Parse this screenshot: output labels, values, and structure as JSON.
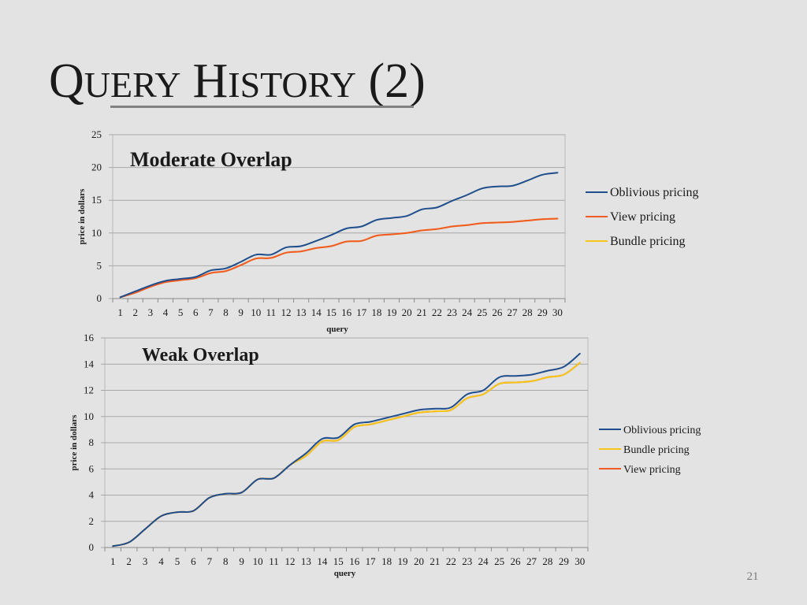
{
  "slide": {
    "title_q": "Q",
    "title_uery": "UERY",
    "title_h": "H",
    "title_istory": "ISTORY",
    "title_num": " (2)",
    "page_number": "21"
  },
  "chart_data": [
    {
      "type": "line",
      "title": "Moderate Overlap",
      "xlabel": "query",
      "ylabel": "price in dollars",
      "ylim": [
        0,
        25
      ],
      "yticks": [
        0,
        5,
        10,
        15,
        20,
        25
      ],
      "grid": true,
      "legend_position": "right",
      "x": [
        1,
        2,
        3,
        4,
        5,
        6,
        7,
        8,
        9,
        10,
        11,
        12,
        13,
        14,
        15,
        16,
        17,
        18,
        19,
        20,
        21,
        22,
        23,
        24,
        25,
        26,
        27,
        28,
        29,
        30
      ],
      "series": [
        {
          "name": "Oblivious pricing",
          "color": "#1f4e8c",
          "values": [
            0.2,
            1.1,
            2.0,
            2.7,
            3.0,
            3.3,
            4.3,
            4.6,
            5.6,
            6.7,
            6.7,
            7.8,
            8.0,
            8.8,
            9.7,
            10.7,
            11.0,
            12.0,
            12.3,
            12.6,
            13.6,
            13.9,
            14.9,
            15.8,
            16.8,
            17.1,
            17.2,
            18.0,
            18.9,
            19.2
          ]
        },
        {
          "name": "View pricing",
          "color": "#f05a24",
          "values": [
            0.2,
            0.9,
            1.8,
            2.5,
            2.8,
            3.1,
            3.9,
            4.2,
            5.1,
            6.1,
            6.2,
            7.0,
            7.2,
            7.7,
            8.0,
            8.7,
            8.8,
            9.6,
            9.8,
            10.0,
            10.4,
            10.6,
            11.0,
            11.2,
            11.5,
            11.6,
            11.7,
            11.9,
            12.1,
            12.2
          ]
        },
        {
          "name": "Bundle pricing",
          "color": "#f5c518",
          "values": [
            0.2,
            0.9,
            1.8,
            2.5,
            2.8,
            3.1,
            3.9,
            4.2,
            5.1,
            6.1,
            6.2,
            7.0,
            7.2,
            7.7,
            8.0,
            8.7,
            8.8,
            9.6,
            9.8,
            10.0,
            10.4,
            10.6,
            11.0,
            11.2,
            11.5,
            11.6,
            11.7,
            11.9,
            12.1,
            12.2
          ]
        }
      ]
    },
    {
      "type": "line",
      "title": "Weak Overlap",
      "xlabel": "query",
      "ylabel": "price in dollars",
      "ylim": [
        0,
        16
      ],
      "yticks": [
        0,
        2,
        4,
        6,
        8,
        10,
        12,
        14,
        16
      ],
      "grid": true,
      "legend_position": "right",
      "x": [
        1,
        2,
        3,
        4,
        5,
        6,
        7,
        8,
        9,
        10,
        11,
        12,
        13,
        14,
        15,
        16,
        17,
        18,
        19,
        20,
        21,
        22,
        23,
        24,
        25,
        26,
        27,
        28,
        29,
        30
      ],
      "series": [
        {
          "name": "Oblivious pricing",
          "color": "#1f4e8c",
          "values": [
            0.1,
            0.4,
            1.4,
            2.4,
            2.7,
            2.8,
            3.8,
            4.1,
            4.2,
            5.2,
            5.3,
            6.3,
            7.2,
            8.3,
            8.4,
            9.4,
            9.6,
            9.9,
            10.2,
            10.5,
            10.6,
            10.7,
            11.7,
            12.0,
            13.0,
            13.1,
            13.2,
            13.5,
            13.8,
            14.8
          ]
        },
        {
          "name": "Bundle pricing",
          "color": "#f5c518",
          "values": [
            0.1,
            0.4,
            1.4,
            2.4,
            2.7,
            2.8,
            3.8,
            4.1,
            4.2,
            5.2,
            5.3,
            6.3,
            7.0,
            8.1,
            8.2,
            9.2,
            9.4,
            9.7,
            10.0,
            10.3,
            10.4,
            10.5,
            11.4,
            11.7,
            12.5,
            12.6,
            12.7,
            13.0,
            13.2,
            14.1
          ]
        },
        {
          "name": "View pricing",
          "color": "#f05a24",
          "values": [
            0.1,
            0.4,
            1.4,
            2.4,
            2.7,
            2.8,
            3.8,
            4.1,
            4.2,
            5.2,
            5.3,
            6.3,
            7.0,
            8.1,
            8.2,
            9.2,
            9.4,
            9.7,
            10.0,
            10.3,
            10.4,
            10.5,
            11.4,
            11.7,
            12.5,
            12.6,
            12.7,
            13.0,
            13.2,
            14.1
          ]
        }
      ]
    }
  ]
}
